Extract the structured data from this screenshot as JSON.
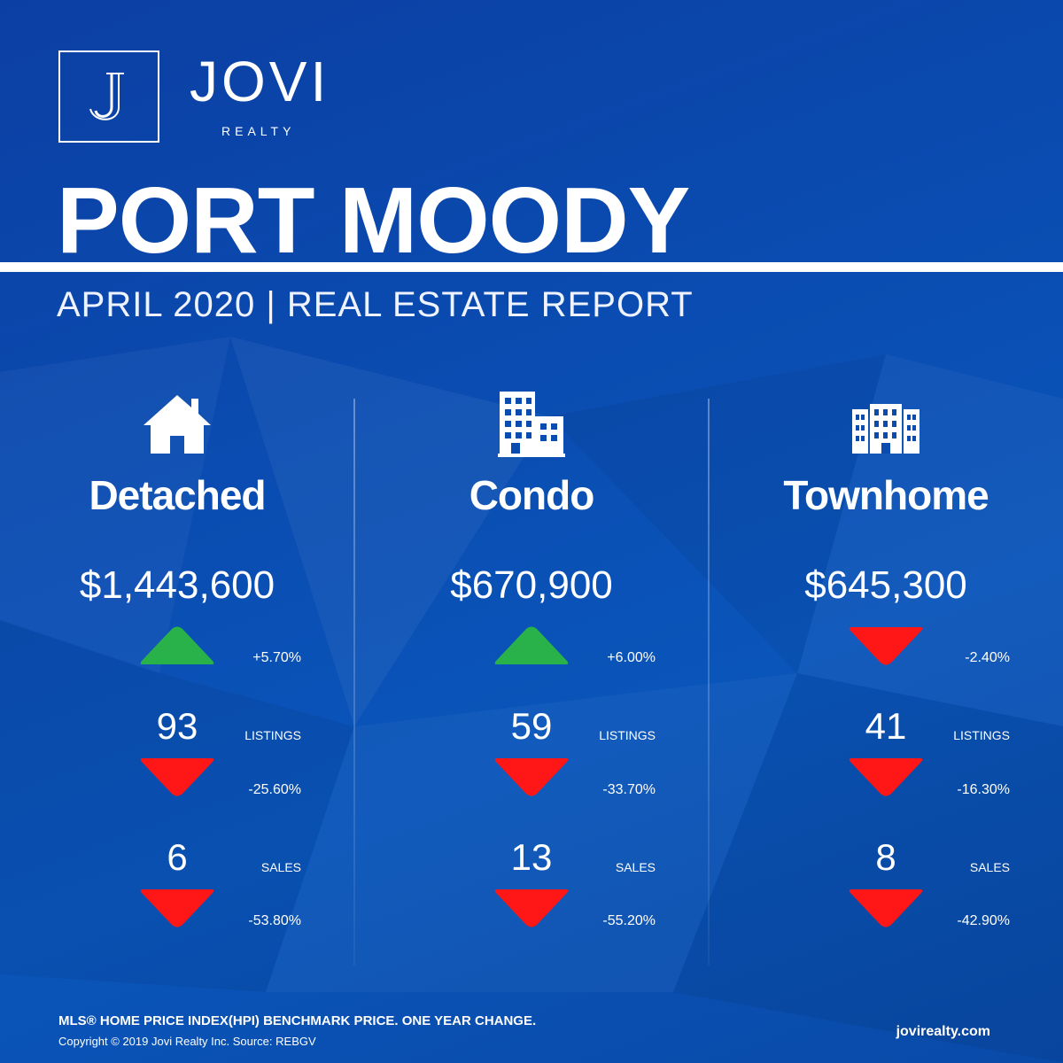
{
  "brand": {
    "monogram": "J",
    "name": "JOVI",
    "sub": "REALTY"
  },
  "header": {
    "title": "PORT MOODY",
    "subtitle": "APRIL 2020 | REAL ESTATE REPORT"
  },
  "labels": {
    "listings": "LISTINGS",
    "sales": "SALES"
  },
  "colors": {
    "up": "#2ab24a",
    "down": "#ff1616",
    "background": "#0a4bb0"
  },
  "columns": [
    {
      "type": "Detached",
      "icon": "house-icon",
      "price": "$1,443,600",
      "price_change": "+5.70%",
      "price_direction": "up",
      "listings": "93",
      "listings_change": "-25.60%",
      "listings_direction": "down",
      "sales": "6",
      "sales_change": "-53.80%",
      "sales_direction": "down"
    },
    {
      "type": "Condo",
      "icon": "apartment-building-icon",
      "price": "$670,900",
      "price_change": "+6.00%",
      "price_direction": "up",
      "listings": "59",
      "listings_change": "-33.70%",
      "listings_direction": "down",
      "sales": "13",
      "sales_change": "-55.20%",
      "sales_direction": "down"
    },
    {
      "type": "Townhome",
      "icon": "townhome-building-icon",
      "price": "$645,300",
      "price_change": "-2.40%",
      "price_direction": "down",
      "listings": "41",
      "listings_change": "-16.30%",
      "listings_direction": "down",
      "sales": "8",
      "sales_change": "-42.90%",
      "sales_direction": "down"
    }
  ],
  "footer": {
    "disclaimer": "MLS® HOME PRICE INDEX(HPI) BENCHMARK PRICE. ONE YEAR CHANGE.",
    "copyright": "Copyright © 2019 Jovi Realty Inc. Source: REBGV",
    "website": "jovirealty.com"
  }
}
